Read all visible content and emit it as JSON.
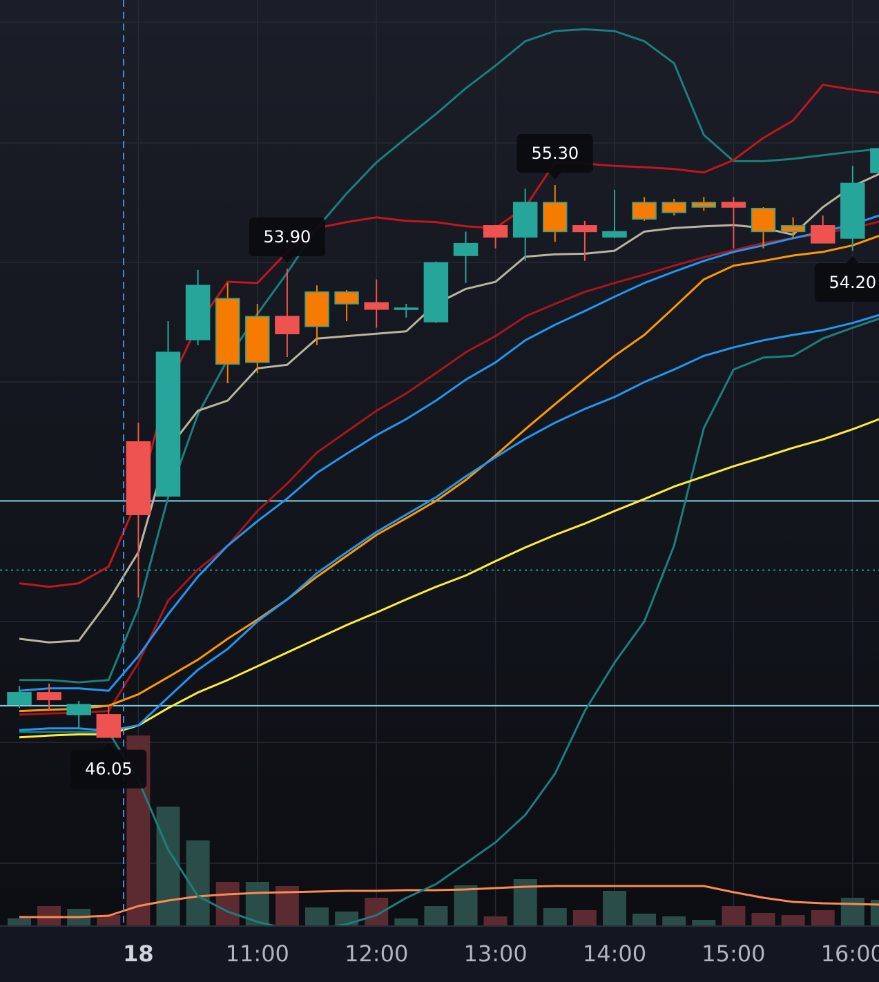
{
  "chart_data": {
    "type": "candlestick",
    "categories": [
      null,
      null,
      null,
      null,
      "18",
      null,
      null,
      null,
      "11:00",
      null,
      null,
      null,
      "12:00",
      null,
      null,
      null,
      "13:00",
      null,
      null,
      null,
      "14:00",
      null,
      null,
      null,
      "15:00",
      null,
      null,
      null,
      "16:00",
      null
    ],
    "bold_categories": [
      "18"
    ],
    "open": [
      46.6,
      46.8,
      46.43,
      46.43,
      51.0,
      50.09,
      52.71,
      53.4,
      52.33,
      53.1,
      52.93,
      53.31,
      53.33,
      53.22,
      53.01,
      54.12,
      54.62,
      54.43,
      54.52,
      54.62,
      54.43,
      54.73,
      54.84,
      54.93,
      55.01,
      54.91,
      54.62,
      54.62,
      54.41,
      55.51
    ],
    "high": [
      46.91,
      46.95,
      46.66,
      46.58,
      51.32,
      53.02,
      53.88,
      53.66,
      53.31,
      53.9,
      53.62,
      53.54,
      53.72,
      53.31,
      54.02,
      54.52,
      54.62,
      55.24,
      55.3,
      54.7,
      55.22,
      55.1,
      55.07,
      55.1,
      55.1,
      54.93,
      54.76,
      54.79,
      55.62,
      55.91
    ],
    "low": [
      46.54,
      46.51,
      46.2,
      46.05,
      48.39,
      50.09,
      52.62,
      51.98,
      52.15,
      52.42,
      52.62,
      53.02,
      52.91,
      53.08,
      52.99,
      53.66,
      54.24,
      54.03,
      54.35,
      54.03,
      54.41,
      54.7,
      54.79,
      54.87,
      54.24,
      54.24,
      54.41,
      54.33,
      54.2,
      55.51
    ],
    "close": [
      46.8,
      46.68,
      46.6,
      46.05,
      49.78,
      52.5,
      53.62,
      52.3,
      53.1,
      52.81,
      53.51,
      53.51,
      53.22,
      53.24,
      54.0,
      54.32,
      54.43,
      55.01,
      55.01,
      54.52,
      54.52,
      55.01,
      55.01,
      55.01,
      54.93,
      54.52,
      54.52,
      54.33,
      55.33,
      55.91
    ],
    "high_labels": [
      null,
      null,
      null,
      null,
      null,
      null,
      null,
      null,
      null,
      "53.90",
      null,
      null,
      null,
      null,
      null,
      null,
      null,
      null,
      "55.30",
      null,
      null,
      null,
      null,
      null,
      null,
      null,
      null,
      null,
      null,
      null
    ],
    "low_labels": [
      null,
      null,
      null,
      "46.05",
      null,
      null,
      null,
      null,
      null,
      null,
      null,
      null,
      null,
      null,
      null,
      null,
      null,
      null,
      null,
      null,
      null,
      null,
      null,
      null,
      null,
      null,
      null,
      null,
      "54.20",
      null
    ],
    "colors": [
      "#26a69a",
      "#ef5350",
      "#26a69a",
      "#ef5350",
      "#ef5350",
      "#26a69a",
      "#26a69a",
      "#f57c00",
      "#f57c00",
      "#ef5350",
      "#f57c00",
      "#f57c00",
      "#ef5350",
      "#26a69a",
      "#26a69a",
      "#26a69a",
      "#ef5350",
      "#26a69a",
      "#f57c00",
      "#ef5350",
      "#26a69a",
      "#f57c00",
      "#f57c00",
      "#f57c00",
      "#ef5350",
      "#f57c00",
      "#f57c00",
      "#ef5350",
      "#26a69a",
      "#26a69a"
    ],
    "ylim": [
      42.9,
      58.4
    ],
    "overlays": [
      {
        "color": "#1b7f7b",
        "values": [
          47.01,
          47.01,
          46.97,
          47.01,
          48.22,
          50.07,
          51.46,
          52.38,
          53.14,
          53.83,
          54.58,
          55.16,
          55.68,
          56.09,
          56.49,
          56.92,
          57.3,
          57.71,
          57.88,
          57.91,
          57.88,
          57.71,
          57.34,
          56.14,
          55.7,
          55.7,
          55.74,
          55.8,
          55.86,
          55.91
        ]
      },
      {
        "color": "#1b7f7b",
        "values": [
          46.14,
          46.14,
          46.14,
          46.14,
          45.33,
          44.17,
          43.39,
          43.13,
          42.96,
          42.84,
          42.84,
          42.92,
          43.07,
          43.36,
          43.59,
          43.94,
          44.29,
          44.75,
          45.44,
          46.49,
          47.3,
          47.99,
          49.26,
          51.23,
          52.21,
          52.41,
          52.44,
          52.73,
          52.91,
          53.08
        ]
      },
      {
        "color": "#c3161c",
        "values": [
          48.63,
          48.57,
          48.63,
          48.91,
          50.07,
          51.92,
          52.96,
          53.68,
          53.66,
          54.18,
          54.58,
          54.68,
          54.76,
          54.7,
          54.68,
          54.61,
          54.58,
          54.93,
          55.68,
          55.66,
          55.62,
          55.6,
          55.57,
          55.51,
          55.72,
          56.09,
          56.38,
          56.98,
          56.9,
          56.84
        ]
      },
      {
        "color": "#b8b59e",
        "values": [
          47.7,
          47.64,
          47.67,
          48.34,
          49.15,
          50.88,
          51.52,
          51.69,
          52.23,
          52.29,
          52.73,
          52.77,
          52.81,
          52.85,
          53.31,
          53.56,
          53.68,
          54.1,
          54.14,
          54.15,
          54.2,
          54.52,
          54.58,
          54.61,
          54.63,
          54.58,
          54.47,
          54.93,
          55.28,
          55.51
        ]
      },
      {
        "color": "#a8161b",
        "values": [
          46.43,
          46.45,
          46.46,
          46.49,
          47.3,
          48.34,
          48.86,
          49.26,
          49.84,
          50.3,
          50.82,
          51.17,
          51.52,
          51.81,
          52.15,
          52.5,
          52.77,
          53.1,
          53.31,
          53.51,
          53.66,
          53.8,
          53.95,
          54.09,
          54.21,
          54.33,
          54.41,
          54.49,
          54.58,
          54.7
        ]
      },
      {
        "color": "#ff9800",
        "values": [
          46.49,
          46.51,
          46.53,
          46.58,
          46.77,
          47.06,
          47.35,
          47.7,
          48.02,
          48.36,
          48.74,
          49.09,
          49.44,
          49.72,
          50.01,
          50.36,
          50.77,
          51.21,
          51.63,
          52.04,
          52.44,
          52.79,
          53.25,
          53.72,
          53.95,
          54.03,
          54.12,
          54.18,
          54.29,
          54.47
        ]
      },
      {
        "color": "#ffeb3b",
        "values": [
          46.05,
          46.08,
          46.1,
          46.1,
          46.25,
          46.54,
          46.8,
          47.01,
          47.24,
          47.47,
          47.7,
          47.93,
          48.14,
          48.36,
          48.57,
          48.76,
          49.0,
          49.23,
          49.44,
          49.63,
          49.84,
          50.04,
          50.25,
          50.42,
          50.59,
          50.74,
          50.9,
          51.04,
          51.21,
          51.4
        ]
      },
      {
        "color": "#2196f3",
        "values": [
          46.17,
          46.2,
          46.2,
          46.16,
          46.25,
          46.72,
          47.18,
          47.53,
          47.99,
          48.36,
          48.8,
          49.15,
          49.49,
          49.78,
          50.07,
          50.42,
          50.74,
          51.05,
          51.32,
          51.55,
          51.75,
          52.0,
          52.21,
          52.44,
          52.58,
          52.7,
          52.79,
          52.87,
          52.99,
          53.14
        ]
      },
      {
        "color": "#2196f3",
        "values": [
          46.83,
          46.87,
          46.87,
          46.83,
          47.41,
          48.11,
          48.74,
          49.26,
          49.67,
          50.05,
          50.48,
          50.8,
          51.11,
          51.38,
          51.69,
          52.04,
          52.33,
          52.7,
          52.96,
          53.19,
          53.43,
          53.66,
          53.85,
          54.03,
          54.18,
          54.29,
          54.41,
          54.52,
          54.64,
          54.81
        ]
      }
    ],
    "hlines": [
      {
        "value": 50.01,
        "color": "#7fd3e6",
        "style": "solid"
      },
      {
        "value": 46.58,
        "color": "#7fd3e6",
        "style": "solid"
      },
      {
        "value": 48.85,
        "color": "#1f9a94",
        "style": "dotted"
      }
    ],
    "volume": {
      "ylim": [
        0,
        300
      ],
      "values": [
        10,
        28,
        24,
        15,
        275,
        172,
        123,
        63,
        63,
        57,
        26,
        20,
        40,
        10,
        28,
        58,
        13,
        67,
        25,
        22,
        50,
        17,
        13,
        8,
        28,
        18,
        15,
        22,
        40,
        37
      ],
      "up_color": "#2b4d49",
      "down_color": "#5c2a31",
      "ma": {
        "color": "#ff8a50",
        "values": [
          12,
          12,
          12,
          14,
          28,
          36,
          42,
          45,
          47,
          48,
          49,
          50,
          50,
          51,
          51,
          52,
          54,
          56,
          57,
          57,
          57,
          57,
          57,
          57,
          48,
          40,
          34,
          32,
          31,
          30
        ]
      }
    }
  }
}
